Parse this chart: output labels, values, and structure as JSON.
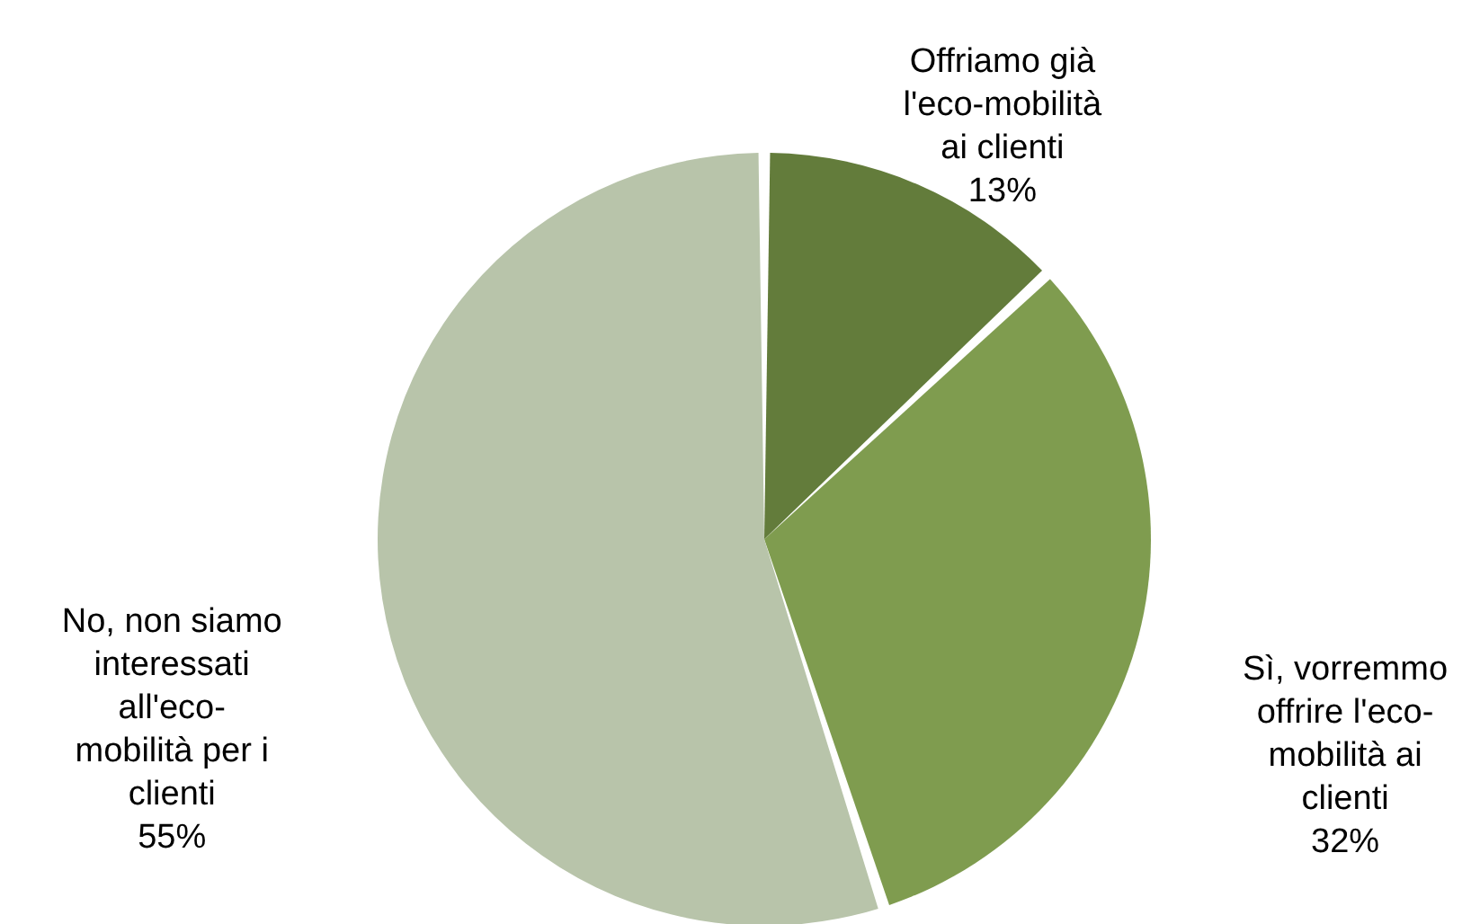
{
  "chart_data": {
    "type": "pie",
    "categories": [
      "Offriamo già l'eco-mobilità ai clienti",
      "Sì, vorremmo offrire l'eco-mobilità ai clienti",
      "No, non siamo interessati all'eco-mobilità per i clienti"
    ],
    "values": [
      13,
      32,
      55
    ],
    "colors": [
      "#637c3b",
      "#7f9c4f",
      "#b8c4aa"
    ],
    "value_labels": [
      "13%",
      "32%",
      "55%"
    ]
  }
}
